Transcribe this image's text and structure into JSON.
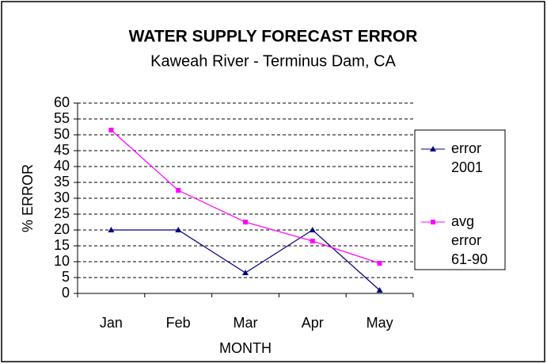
{
  "chart_data": {
    "type": "line",
    "title": "WATER SUPPLY FORECAST ERROR",
    "subtitle": "Kaweah River - Terminus Dam, CA",
    "x_label": "MONTH",
    "y_label": "% ERROR",
    "categories": [
      "Jan",
      "Feb",
      "Mar",
      "Apr",
      "May"
    ],
    "series": [
      {
        "name": "error 2001",
        "color": "#000080",
        "marker": "triangle",
        "values": [
          20,
          20,
          6.5,
          20,
          1
        ]
      },
      {
        "name": "avg error 61-90",
        "color": "#ff00ff",
        "marker": "square",
        "values": [
          51.5,
          32.5,
          22.5,
          16.5,
          9.5
        ]
      }
    ],
    "ylim": [
      0,
      60
    ],
    "yticks": [
      0,
      5,
      10,
      15,
      20,
      25,
      30,
      35,
      40,
      45,
      50,
      55,
      60
    ],
    "grid": true,
    "legend": "right"
  }
}
